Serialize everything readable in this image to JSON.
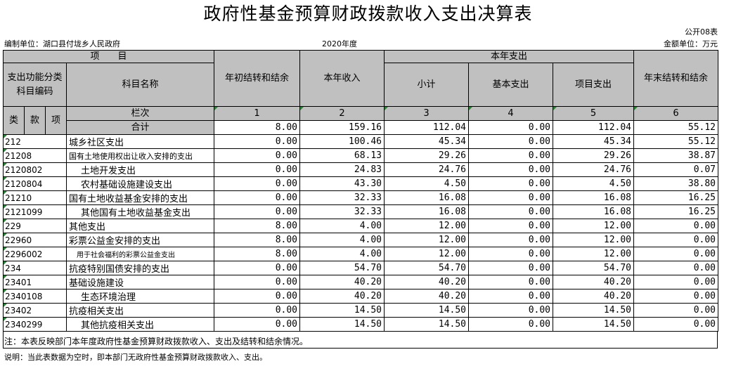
{
  "title": "政府性基金预算财政拨款收入支出决算表",
  "form_code": "公开08表",
  "unit_org": "编制单位：湖口县付垅乡人民政府",
  "year": "2020年度",
  "money_unit": "金额单位：万元",
  "headers": {
    "project": "项　　目",
    "func_code": "支出功能分类科目编码",
    "subject_name": "科目名称",
    "opening_balance": "年初结转和结余",
    "income": "本年收入",
    "current_expense": "本年支出",
    "subtotal": "小计",
    "basic": "基本支出",
    "project_exp": "项目支出",
    "closing_balance": "年末结转和结余",
    "lei": "类",
    "kuan": "款",
    "xiang": "项",
    "column_no": "栏次",
    "col_nums": [
      "1",
      "2",
      "3",
      "4",
      "5",
      "6"
    ],
    "total": "合计"
  },
  "total_row": [
    "8.00",
    "159.16",
    "112.04",
    "0.00",
    "112.04",
    "55.12"
  ],
  "rows": [
    {
      "code": "212",
      "name": "城乡社区支出",
      "v": [
        "0.00",
        "100.46",
        "45.34",
        "0.00",
        "45.34",
        "55.12"
      ]
    },
    {
      "code": "21208",
      "name": "国有土地使用权出让收入安排的支出",
      "v": [
        "0.00",
        "68.13",
        "29.26",
        "0.00",
        "29.26",
        "38.87"
      ]
    },
    {
      "code": "2120802",
      "name": "土地开发支出",
      "v": [
        "0.00",
        "24.83",
        "24.76",
        "0.00",
        "24.76",
        "0.07"
      ]
    },
    {
      "code": "2120804",
      "name": "农村基础设施建设支出",
      "v": [
        "0.00",
        "43.30",
        "4.50",
        "0.00",
        "4.50",
        "38.80"
      ]
    },
    {
      "code": "21210",
      "name": "国有土地收益基金安排的支出",
      "v": [
        "0.00",
        "32.33",
        "16.08",
        "0.00",
        "16.08",
        "16.25"
      ]
    },
    {
      "code": "2121099",
      "name": "其他国有土地收益基金支出",
      "v": [
        "0.00",
        "32.33",
        "16.08",
        "0.00",
        "16.08",
        "16.25"
      ]
    },
    {
      "code": "229",
      "name": "其他支出",
      "v": [
        "8.00",
        "4.00",
        "12.00",
        "0.00",
        "12.00",
        "0.00"
      ]
    },
    {
      "code": "22960",
      "name": "彩票公益金安排的支出",
      "v": [
        "8.00",
        "4.00",
        "12.00",
        "0.00",
        "12.00",
        "0.00"
      ]
    },
    {
      "code": "2296002",
      "name": "用于社会福利的彩票公益金支出",
      "v": [
        "8.00",
        "4.00",
        "12.00",
        "0.00",
        "12.00",
        "0.00"
      ]
    },
    {
      "code": "234",
      "name": "抗疫特别国债安排的支出",
      "v": [
        "0.00",
        "54.70",
        "54.70",
        "0.00",
        "54.70",
        "0.00"
      ]
    },
    {
      "code": "23401",
      "name": "基础设施建设",
      "v": [
        "0.00",
        "40.20",
        "40.20",
        "0.00",
        "40.20",
        "0.00"
      ]
    },
    {
      "code": "2340108",
      "name": "生态环境治理",
      "v": [
        "0.00",
        "40.20",
        "40.20",
        "0.00",
        "40.20",
        "0.00"
      ]
    },
    {
      "code": "23402",
      "name": "抗疫相关支出",
      "v": [
        "0.00",
        "14.50",
        "14.50",
        "0.00",
        "14.50",
        "0.00"
      ]
    },
    {
      "code": "2340299",
      "name": "其他抗疫相关支出",
      "v": [
        "0.00",
        "14.50",
        "14.50",
        "0.00",
        "14.50",
        "0.00"
      ]
    }
  ],
  "note1": "注：本表反映部门本年度政府性基金预算财政拨款收入、支出及结转和结余情况。",
  "note2": "说明：当此表数据为空时，即本部门无政府性基金预算财政拨款收入、支出。"
}
